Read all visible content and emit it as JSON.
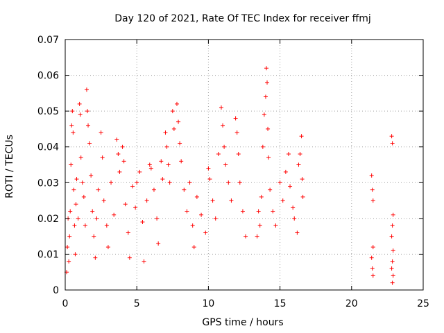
{
  "chart_data": {
    "type": "scatter",
    "title": "Day 120 of 2021, Rate Of TEC Index for receiver ffmj",
    "xlabel": "GPS time / hours",
    "ylabel": "ROTI / TECUs",
    "xlim": [
      0,
      25
    ],
    "ylim": [
      0,
      0.07
    ],
    "xticks": [
      "0",
      "5",
      "10",
      "15",
      "20",
      "25"
    ],
    "xtick_values": [
      0,
      5,
      10,
      15,
      20,
      25
    ],
    "yticks": [
      "0",
      "0.01",
      "0.02",
      "0.03",
      "0.04",
      "0.05",
      "0.06",
      "0.07"
    ],
    "ytick_values": [
      0,
      0.01,
      0.02,
      0.03,
      0.04,
      0.05,
      0.06,
      0.07
    ],
    "grid": true,
    "marker": "+",
    "color": "#ff0000",
    "series": [
      {
        "name": "ROTI",
        "points": [
          [
            0.1,
            0.005
          ],
          [
            0.15,
            0.012
          ],
          [
            0.2,
            0.02
          ],
          [
            0.25,
            0.008
          ],
          [
            0.3,
            0.015
          ],
          [
            0.35,
            0.022
          ],
          [
            0.4,
            0.035
          ],
          [
            0.45,
            0.046
          ],
          [
            0.5,
            0.05
          ],
          [
            0.55,
            0.044
          ],
          [
            0.6,
            0.028
          ],
          [
            0.65,
            0.018
          ],
          [
            0.7,
            0.01
          ],
          [
            0.75,
            0.024
          ],
          [
            0.8,
            0.031
          ],
          [
            0.9,
            0.02
          ],
          [
            1.0,
            0.052
          ],
          [
            1.05,
            0.049
          ],
          [
            1.1,
            0.037
          ],
          [
            1.2,
            0.03
          ],
          [
            1.3,
            0.026
          ],
          [
            1.4,
            0.018
          ],
          [
            1.5,
            0.056
          ],
          [
            1.55,
            0.05
          ],
          [
            1.6,
            0.046
          ],
          [
            1.7,
            0.041
          ],
          [
            1.8,
            0.032
          ],
          [
            1.9,
            0.022
          ],
          [
            2.0,
            0.015
          ],
          [
            2.1,
            0.009
          ],
          [
            2.2,
            0.02
          ],
          [
            2.3,
            0.028
          ],
          [
            2.5,
            0.044
          ],
          [
            2.6,
            0.037
          ],
          [
            2.7,
            0.025
          ],
          [
            2.9,
            0.018
          ],
          [
            3.0,
            0.012
          ],
          [
            3.2,
            0.03
          ],
          [
            3.4,
            0.021
          ],
          [
            3.6,
            0.042
          ],
          [
            3.7,
            0.038
          ],
          [
            3.8,
            0.033
          ],
          [
            4.0,
            0.04
          ],
          [
            4.1,
            0.036
          ],
          [
            4.2,
            0.024
          ],
          [
            4.4,
            0.016
          ],
          [
            4.5,
            0.009
          ],
          [
            4.7,
            0.029
          ],
          [
            4.9,
            0.023
          ],
          [
            5.0,
            0.03
          ],
          [
            5.2,
            0.033
          ],
          [
            5.4,
            0.019
          ],
          [
            5.5,
            0.008
          ],
          [
            5.7,
            0.025
          ],
          [
            5.9,
            0.035
          ],
          [
            6.0,
            0.034
          ],
          [
            6.2,
            0.028
          ],
          [
            6.4,
            0.02
          ],
          [
            6.5,
            0.013
          ],
          [
            6.7,
            0.036
          ],
          [
            6.8,
            0.031
          ],
          [
            7.0,
            0.044
          ],
          [
            7.1,
            0.04
          ],
          [
            7.2,
            0.035
          ],
          [
            7.3,
            0.03
          ],
          [
            7.5,
            0.05
          ],
          [
            7.6,
            0.045
          ],
          [
            7.8,
            0.052
          ],
          [
            7.9,
            0.047
          ],
          [
            8.0,
            0.041
          ],
          [
            8.1,
            0.036
          ],
          [
            8.3,
            0.028
          ],
          [
            8.5,
            0.022
          ],
          [
            8.7,
            0.03
          ],
          [
            8.9,
            0.018
          ],
          [
            9.0,
            0.012
          ],
          [
            9.2,
            0.026
          ],
          [
            9.5,
            0.021
          ],
          [
            9.8,
            0.016
          ],
          [
            10.0,
            0.034
          ],
          [
            10.1,
            0.031
          ],
          [
            10.3,
            0.025
          ],
          [
            10.5,
            0.02
          ],
          [
            10.7,
            0.038
          ],
          [
            10.9,
            0.051
          ],
          [
            11.0,
            0.046
          ],
          [
            11.1,
            0.04
          ],
          [
            11.2,
            0.035
          ],
          [
            11.4,
            0.03
          ],
          [
            11.6,
            0.025
          ],
          [
            11.9,
            0.048
          ],
          [
            12.0,
            0.044
          ],
          [
            12.1,
            0.038
          ],
          [
            12.2,
            0.03
          ],
          [
            12.4,
            0.022
          ],
          [
            12.6,
            0.015
          ],
          [
            13.4,
            0.015
          ],
          [
            13.5,
            0.022
          ],
          [
            13.6,
            0.018
          ],
          [
            13.7,
            0.026
          ],
          [
            13.8,
            0.04
          ],
          [
            13.9,
            0.049
          ],
          [
            14.0,
            0.054
          ],
          [
            14.05,
            0.062
          ],
          [
            14.1,
            0.058
          ],
          [
            14.15,
            0.045
          ],
          [
            14.2,
            0.037
          ],
          [
            14.3,
            0.028
          ],
          [
            14.5,
            0.022
          ],
          [
            14.7,
            0.018
          ],
          [
            15.0,
            0.03
          ],
          [
            15.2,
            0.025
          ],
          [
            15.4,
            0.033
          ],
          [
            15.6,
            0.038
          ],
          [
            15.7,
            0.029
          ],
          [
            15.9,
            0.023
          ],
          [
            16.0,
            0.02
          ],
          [
            16.2,
            0.016
          ],
          [
            16.3,
            0.035
          ],
          [
            16.4,
            0.038
          ],
          [
            16.5,
            0.043
          ],
          [
            16.55,
            0.031
          ],
          [
            16.6,
            0.026
          ],
          [
            21.4,
            0.032
          ],
          [
            21.45,
            0.028
          ],
          [
            21.5,
            0.025
          ],
          [
            21.5,
            0.012
          ],
          [
            21.4,
            0.009
          ],
          [
            21.45,
            0.006
          ],
          [
            21.5,
            0.004
          ],
          [
            22.8,
            0.043
          ],
          [
            22.85,
            0.041
          ],
          [
            22.9,
            0.021
          ],
          [
            22.85,
            0.018
          ],
          [
            22.8,
            0.015
          ],
          [
            22.9,
            0.011
          ],
          [
            22.85,
            0.008
          ],
          [
            22.8,
            0.006
          ],
          [
            22.9,
            0.004
          ],
          [
            22.85,
            0.002
          ]
        ]
      }
    ]
  }
}
